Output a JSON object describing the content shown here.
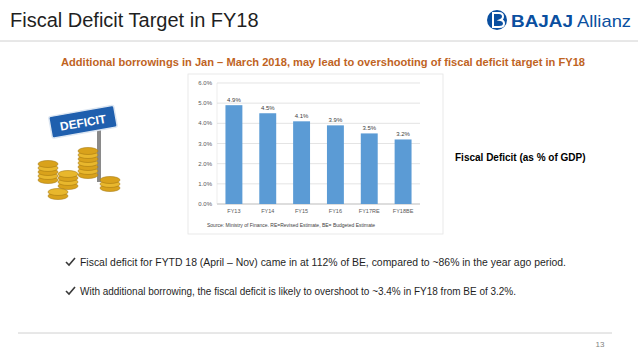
{
  "chart_data": {
    "type": "bar",
    "title": "Fiscal Deficit (as % of GDP)",
    "categories": [
      "FY13",
      "FY14",
      "FY15",
      "FY16",
      "FY17RE",
      "FY18BE"
    ],
    "values": [
      4.9,
      4.5,
      4.1,
      3.9,
      3.5,
      3.2
    ],
    "value_labels": [
      "4.9%",
      "4.5%",
      "4.1%",
      "3.9%",
      "3.5%",
      "3.2%"
    ],
    "color": "#5b9bd5",
    "ylim": [
      0,
      6
    ],
    "yticks": [
      {
        "value": 0,
        "label": "0.0%"
      },
      {
        "value": 1,
        "label": "1.0%"
      },
      {
        "value": 2,
        "label": "2.0%"
      },
      {
        "value": 3,
        "label": "3.0%"
      },
      {
        "value": 4,
        "label": "4.0%"
      },
      {
        "value": 5,
        "label": "5.0%"
      },
      {
        "value": 6,
        "label": "6.0%"
      }
    ],
    "grid": true,
    "data_labels": true,
    "annotations": [
      "Source: Ministry of Finance. RE=Revised Estimate, BE= Budgeted Estimate"
    ]
  },
  "slide": {
    "title": "Fiscal Deficit Target in FY18",
    "logo": {
      "brand": "BAJAJ",
      "partner": "Allianz"
    },
    "subtitle": "Additional borrowings in Jan – March 2018, may lead to overshooting of fiscal deficit target in FY18",
    "sign": "DEFICIT",
    "bullets": [
      "Fiscal deficit for FYTD 18 (April – Nov) came in at 112% of BE, compared to ~86% in the year ago period.",
      "With additional borrowing, the fiscal deficit is likely to overshoot to ~3.4% in FY18 from BE of 3.2%."
    ],
    "page_number": "13"
  }
}
